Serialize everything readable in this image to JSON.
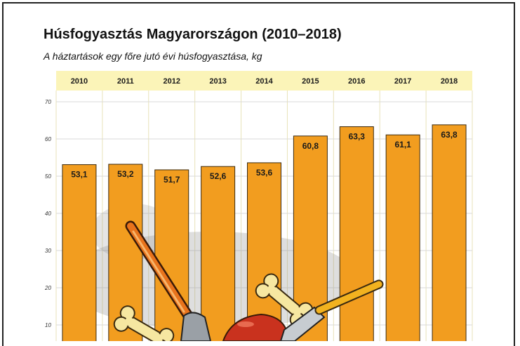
{
  "chart_data": {
    "type": "bar",
    "title": "Húsfogyasztás Magyarországon (2010–2018)",
    "subtitle": "A háztartások egy főre jutó évi húsfogyasztása, kg",
    "categories": [
      "2010",
      "2011",
      "2012",
      "2013",
      "2014",
      "2015",
      "2016",
      "2017",
      "2018"
    ],
    "values": [
      53.1,
      53.2,
      51.7,
      52.6,
      53.6,
      60.8,
      63.3,
      61.1,
      63.8
    ],
    "value_labels": [
      "53,1",
      "53,2",
      "51,7",
      "52,6",
      "53,6",
      "60,8",
      "63,3",
      "61,1",
      "63,8"
    ],
    "yticks": [
      "10",
      "20",
      "30",
      "40",
      "50",
      "60",
      "70"
    ],
    "ylim": [
      0,
      70
    ],
    "grid": true,
    "colors": {
      "bar": "#f29d1f",
      "bar_edge": "#3a2a10",
      "header_band": "#fbf4b8",
      "column_band": "#fdfbe6"
    }
  }
}
